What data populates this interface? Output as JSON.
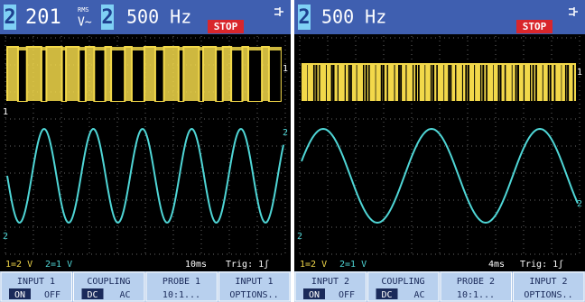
{
  "panels": [
    {
      "header": {
        "channel": "2",
        "reading": "201",
        "reading_unit_top": "RMS",
        "reading_unit": "V~",
        "channel2": "2",
        "frequency": "500 Hz",
        "status": "STOP"
      },
      "trace_labels": {
        "ch1_left": "1",
        "ch1_right": "1",
        "ch2_right": "2",
        "ch2_left": "2"
      },
      "status_bar": {
        "ch1_scale": "1=2 V",
        "ch2_scale": "2=1 V",
        "timebase": "10ms",
        "trigger": "Trig: 1ʃ"
      },
      "softkeys": [
        {
          "label": "INPUT 1",
          "options": [
            "ON",
            "OFF"
          ]
        },
        {
          "label": "COUPLING",
          "options": [
            "DC",
            "AC"
          ]
        },
        {
          "label": "PROBE 1",
          "options": [
            "10:1..."
          ]
        },
        {
          "label": "INPUT 1",
          "options": [
            "OPTIONS.."
          ]
        }
      ]
    },
    {
      "header": {
        "channel": "2",
        "frequency": "500 Hz",
        "status": "STOP"
      },
      "trace_labels": {
        "ch1_right": "1",
        "ch2_right": "2",
        "ch2_left": "2"
      },
      "status_bar": {
        "ch1_scale": "1=2 V",
        "ch2_scale": "2=1 V",
        "timebase": "4ms",
        "trigger": "Trig: 1ʃ"
      },
      "softkeys": [
        {
          "label": "INPUT 2",
          "options": [
            "ON",
            "OFF"
          ]
        },
        {
          "label": "COUPLING",
          "options": [
            "DC",
            "AC"
          ]
        },
        {
          "label": "PROBE 2",
          "options": [
            "10:1..."
          ]
        },
        {
          "label": "INPUT 2",
          "options": [
            "OPTIONS.."
          ]
        }
      ]
    }
  ]
}
